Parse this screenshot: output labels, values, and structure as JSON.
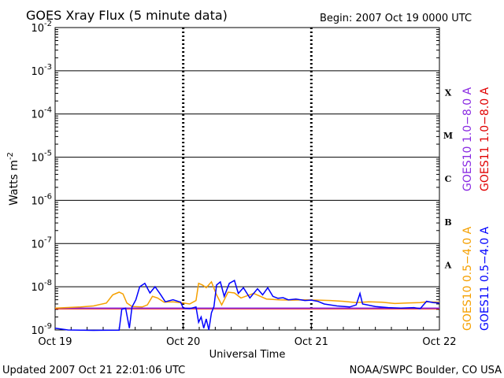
{
  "chart_data": {
    "type": "line",
    "title": "GOES Xray Flux (5 minute data)",
    "begin_label": "Begin:  2007 Oct 19 0000 UTC",
    "xlabel": "Universal Time",
    "ylabel": "Watts m",
    "ylabel_sup": "-2",
    "y_scale": "log",
    "ylim": [
      1e-09,
      0.01
    ],
    "y_ticks": [
      {
        "base": "10",
        "exp": "-2"
      },
      {
        "base": "10",
        "exp": "-3"
      },
      {
        "base": "10",
        "exp": "-4"
      },
      {
        "base": "10",
        "exp": "-5"
      },
      {
        "base": "10",
        "exp": "-6"
      },
      {
        "base": "10",
        "exp": "-7"
      },
      {
        "base": "10",
        "exp": "-8"
      },
      {
        "base": "10",
        "exp": "-9"
      }
    ],
    "x_range_days": [
      0,
      3
    ],
    "x_ticks": [
      "Oct 19",
      "Oct 20",
      "Oct 21",
      "Oct 22"
    ],
    "flare_classes": [
      "X",
      "M",
      "C",
      "B",
      "A"
    ],
    "grid": "horizontal lines at decades, dashed day separators",
    "series": [
      {
        "name": "GOES10 0.5-4.0 A",
        "color": "#f5a000",
        "points": [
          [
            0,
            3.2e-09
          ],
          [
            0.2,
            3.4e-09
          ],
          [
            0.3,
            3.6e-09
          ],
          [
            0.4,
            4.2e-09
          ],
          [
            0.45,
            6.5e-09
          ],
          [
            0.5,
            7.5e-09
          ],
          [
            0.53,
            6.8e-09
          ],
          [
            0.56,
            4.2e-09
          ],
          [
            0.6,
            3.5e-09
          ],
          [
            0.68,
            3.4e-09
          ],
          [
            0.72,
            3.8e-09
          ],
          [
            0.76,
            6e-09
          ],
          [
            0.8,
            5.5e-09
          ],
          [
            0.85,
            4.4e-09
          ],
          [
            0.92,
            4.5e-09
          ],
          [
            1.0,
            4.2e-09
          ],
          [
            1.05,
            4e-09
          ],
          [
            1.1,
            4.8e-09
          ],
          [
            1.12,
            1.2e-08
          ],
          [
            1.15,
            1.1e-08
          ],
          [
            1.18,
            9.5e-09
          ],
          [
            1.22,
            1.3e-08
          ],
          [
            1.26,
            6.5e-09
          ],
          [
            1.3,
            3.8e-09
          ],
          [
            1.35,
            7.5e-09
          ],
          [
            1.4,
            7.2e-09
          ],
          [
            1.45,
            5.5e-09
          ],
          [
            1.55,
            7e-09
          ],
          [
            1.65,
            5.2e-09
          ],
          [
            1.75,
            5e-09
          ],
          [
            1.85,
            4.9e-09
          ],
          [
            1.95,
            5e-09
          ],
          [
            2.05,
            4.9e-09
          ],
          [
            2.15,
            4.8e-09
          ],
          [
            2.25,
            4.6e-09
          ],
          [
            2.35,
            4.3e-09
          ],
          [
            2.45,
            4.5e-09
          ],
          [
            2.55,
            4.4e-09
          ],
          [
            2.65,
            4.1e-09
          ],
          [
            2.75,
            4.2e-09
          ],
          [
            2.85,
            4.3e-09
          ],
          [
            2.9,
            4.5e-09
          ],
          [
            3.0,
            4.4e-09
          ]
        ]
      },
      {
        "name": "GOES11 0.5-4.0 A",
        "color": "#0000ff",
        "points": [
          [
            0,
            1.1e-09
          ],
          [
            0.1,
            1e-09
          ],
          [
            0.3,
            9.8e-10
          ],
          [
            0.5,
            9.9e-10
          ],
          [
            0.52,
            3e-09
          ],
          [
            0.55,
            3.2e-09
          ],
          [
            0.58,
            1.1e-09
          ],
          [
            0.6,
            3.4e-09
          ],
          [
            0.63,
            5e-09
          ],
          [
            0.66,
            1e-08
          ],
          [
            0.7,
            1.2e-08
          ],
          [
            0.74,
            7.2e-09
          ],
          [
            0.78,
            1e-08
          ],
          [
            0.82,
            6.8e-09
          ],
          [
            0.86,
            4.5e-09
          ],
          [
            0.92,
            5e-09
          ],
          [
            0.98,
            4.4e-09
          ],
          [
            1.0,
            3.2e-09
          ],
          [
            1.05,
            3.1e-09
          ],
          [
            1.1,
            3.4e-09
          ],
          [
            1.12,
            1.5e-09
          ],
          [
            1.14,
            2e-09
          ],
          [
            1.16,
            1.1e-09
          ],
          [
            1.18,
            1.8e-09
          ],
          [
            1.2,
            1e-09
          ],
          [
            1.22,
            2.5e-09
          ],
          [
            1.24,
            3.5e-09
          ],
          [
            1.26,
            1.1e-08
          ],
          [
            1.29,
            1.3e-08
          ],
          [
            1.32,
            6e-09
          ],
          [
            1.36,
            1.2e-08
          ],
          [
            1.4,
            1.4e-08
          ],
          [
            1.43,
            7e-09
          ],
          [
            1.47,
            9.5e-09
          ],
          [
            1.52,
            5.5e-09
          ],
          [
            1.58,
            9e-09
          ],
          [
            1.62,
            6.5e-09
          ],
          [
            1.66,
            9.5e-09
          ],
          [
            1.7,
            6e-09
          ],
          [
            1.74,
            5.4e-09
          ],
          [
            1.78,
            5.6e-09
          ],
          [
            1.82,
            5e-09
          ],
          [
            1.88,
            5.2e-09
          ],
          [
            1.95,
            4.8e-09
          ],
          [
            2.0,
            4.9e-09
          ],
          [
            2.05,
            4.6e-09
          ],
          [
            2.1,
            4e-09
          ],
          [
            2.2,
            3.6e-09
          ],
          [
            2.3,
            3.4e-09
          ],
          [
            2.35,
            3.8e-09
          ],
          [
            2.38,
            7e-09
          ],
          [
            2.4,
            4e-09
          ],
          [
            2.5,
            3.5e-09
          ],
          [
            2.6,
            3.3e-09
          ],
          [
            2.7,
            3.2e-09
          ],
          [
            2.8,
            3.3e-09
          ],
          [
            2.85,
            3.1e-09
          ],
          [
            2.9,
            4.6e-09
          ],
          [
            2.95,
            4.3e-09
          ],
          [
            3.0,
            4.2e-09
          ]
        ]
      },
      {
        "name": "GOES10 1.0-8.0 A",
        "color": "#8a2be2",
        "points": [
          [
            0,
            3.2e-09
          ],
          [
            3.0,
            3.2e-09
          ]
        ]
      },
      {
        "name": "GOES11 1.0-8.0 A",
        "color": "#e00000",
        "points": [
          [
            0,
            3.1e-09
          ],
          [
            3.0,
            3.1e-09
          ]
        ]
      }
    ]
  },
  "legend_right_top": {
    "goes10_long": "GOES10 1.0−8.0 A",
    "goes11_long": "GOES11 1.0−8.0 A"
  },
  "legend_right_bottom": {
    "goes10_short": "GOES10 0.5−4.0 A",
    "goes11_short": "GOES11 0.5−4.0 A"
  },
  "footer": {
    "updated": "Updated 2007 Oct 21 22:01:06 UTC",
    "source": "NOAA/SWPC Boulder, CO USA"
  },
  "colors": {
    "goes10_long": "#8a2be2",
    "goes11_long": "#e00000",
    "goes10_short": "#f5a000",
    "goes11_short": "#0000ff"
  }
}
